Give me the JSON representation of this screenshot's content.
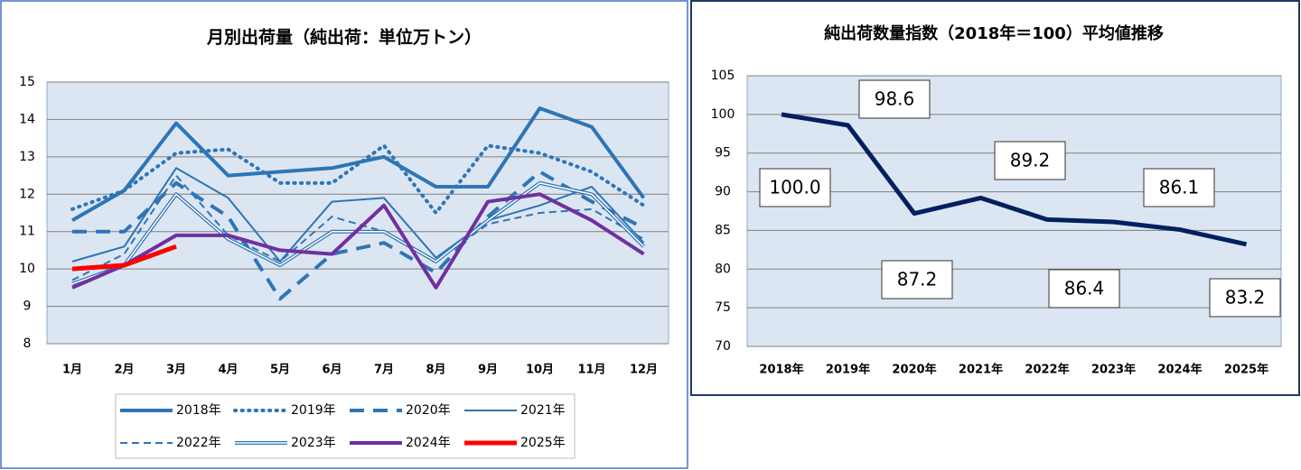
{
  "chart_data": [
    {
      "type": "line",
      "title": "月別出荷量（純出荷：単位万トン）",
      "categories": [
        "1月",
        "2月",
        "3月",
        "4月",
        "5月",
        "6月",
        "7月",
        "8月",
        "9月",
        "10月",
        "11月",
        "12月"
      ],
      "ylim": [
        8,
        15
      ],
      "yticks": [
        8,
        9,
        10,
        11,
        12,
        13,
        14,
        15
      ],
      "grid": true,
      "series": [
        {
          "name": "2018年",
          "color": "#2e75b6",
          "style": "solid",
          "width": 4,
          "values": [
            11.3,
            12.1,
            13.9,
            12.5,
            12.6,
            12.7,
            13.0,
            12.2,
            12.2,
            14.3,
            13.8,
            11.9
          ]
        },
        {
          "name": "2019年",
          "color": "#2e75b6",
          "style": "dotted",
          "width": 4,
          "values": [
            11.6,
            12.1,
            13.1,
            13.2,
            12.3,
            12.3,
            13.3,
            11.5,
            13.3,
            13.1,
            12.6,
            11.7
          ]
        },
        {
          "name": "2020年",
          "color": "#2e75b6",
          "style": "dashed",
          "width": 4,
          "values": [
            11.0,
            11.0,
            12.3,
            11.4,
            9.2,
            10.4,
            10.7,
            9.9,
            11.4,
            12.6,
            11.8,
            11.1
          ]
        },
        {
          "name": "2021年",
          "color": "#2e75b6",
          "style": "solid",
          "width": 2,
          "values": [
            10.2,
            10.6,
            12.7,
            11.9,
            10.2,
            11.8,
            11.9,
            10.3,
            11.3,
            11.7,
            12.2,
            10.7
          ]
        },
        {
          "name": "2022年",
          "color": "#2e75b6",
          "style": "dashed",
          "width": 2,
          "values": [
            9.7,
            10.4,
            12.5,
            10.9,
            10.2,
            11.4,
            11.0,
            10.2,
            11.2,
            11.5,
            11.6,
            10.8
          ]
        },
        {
          "name": "2023年",
          "color": "#2e75b6",
          "style": "double",
          "width": 4,
          "values": [
            9.6,
            10.1,
            12.0,
            10.8,
            10.1,
            11.0,
            11.0,
            10.2,
            11.3,
            12.3,
            12.0,
            10.6
          ]
        },
        {
          "name": "2024年",
          "color": "#7030a0",
          "style": "solid",
          "width": 4,
          "values": [
            9.5,
            10.1,
            10.9,
            10.9,
            10.5,
            10.4,
            11.7,
            9.5,
            11.8,
            12.0,
            11.3,
            10.4
          ]
        },
        {
          "name": "2025年",
          "color": "#ff0000",
          "style": "solid",
          "width": 5,
          "values": [
            10.0,
            10.1,
            10.6,
            null,
            null,
            null,
            null,
            null,
            null,
            null,
            null,
            null
          ]
        }
      ]
    },
    {
      "type": "line",
      "title": "純出荷数量指数（2018年＝100）平均値推移",
      "categories": [
        "2018年",
        "2019年",
        "2020年",
        "2021年",
        "2022年",
        "2023年",
        "2024年",
        "2025年"
      ],
      "ylim": [
        70,
        105
      ],
      "yticks": [
        70,
        75,
        80,
        85,
        90,
        95,
        100,
        105
      ],
      "grid": true,
      "series": [
        {
          "name": "指数",
          "color": "#002060",
          "values": [
            100,
            98.6,
            87.2,
            89.2,
            86.4,
            86.1,
            85.1,
            83.2
          ],
          "value_labels": [
            "100.0",
            "98.6",
            "87.2",
            "89.2",
            "86.4",
            "86.1",
            null,
            "83.2"
          ]
        }
      ]
    }
  ]
}
